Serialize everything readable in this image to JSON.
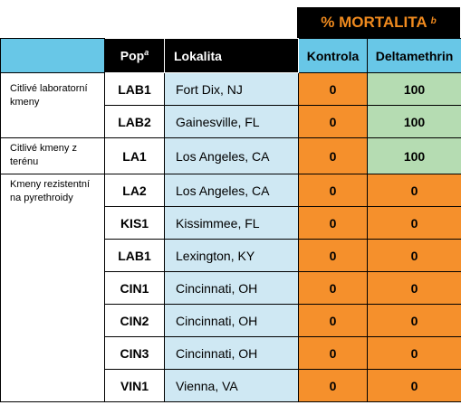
{
  "header": {
    "mortality_title": "% MORTALITA",
    "mortality_sup": "b",
    "col_pop": "Pop",
    "col_pop_sup": "a",
    "col_lokalita": "Lokalita",
    "col_kontrola": "Kontrola",
    "col_deltamethrin": "Deltamethrin"
  },
  "groups": [
    "Citlivé laboratorní kmeny",
    "Citlivé kmeny z terénu",
    "Kmeny rezistentní na pyrethroidy"
  ],
  "rows": [
    {
      "pop": "LAB1",
      "lokalita": "Fort Dix, NJ",
      "kontrola": "0",
      "deltamethrin": "100"
    },
    {
      "pop": "LAB2",
      "lokalita": "Gainesville, FL",
      "kontrola": "0",
      "deltamethrin": "100"
    },
    {
      "pop": "LA1",
      "lokalita": "Los Angeles, CA",
      "kontrola": "0",
      "deltamethrin": "100"
    },
    {
      "pop": "LA2",
      "lokalita": "Los Angeles, CA",
      "kontrola": "0",
      "deltamethrin": "0"
    },
    {
      "pop": "KIS1",
      "lokalita": "Kissimmee, FL",
      "kontrola": "0",
      "deltamethrin": "0"
    },
    {
      "pop": "LAB1",
      "lokalita": "Lexington, KY",
      "kontrola": "0",
      "deltamethrin": "0"
    },
    {
      "pop": "CIN1",
      "lokalita": "Cincinnati, OH",
      "kontrola": "0",
      "deltamethrin": "0"
    },
    {
      "pop": "CIN2",
      "lokalita": "Cincinnati, OH",
      "kontrola": "0",
      "deltamethrin": "0"
    },
    {
      "pop": "CIN3",
      "lokalita": "Cincinnati, OH",
      "kontrola": "0",
      "deltamethrin": "0"
    },
    {
      "pop": "VIN1",
      "lokalita": "Vienna, VA",
      "kontrola": "0",
      "deltamethrin": "0"
    }
  ],
  "colors": {
    "header_dark": "#000000",
    "header_accent": "#f08a1e",
    "header_blue": "#68c7e7",
    "location_bg": "#cfe8f3",
    "value_orange": "#f5902c",
    "value_green": "#b5dcb2"
  }
}
